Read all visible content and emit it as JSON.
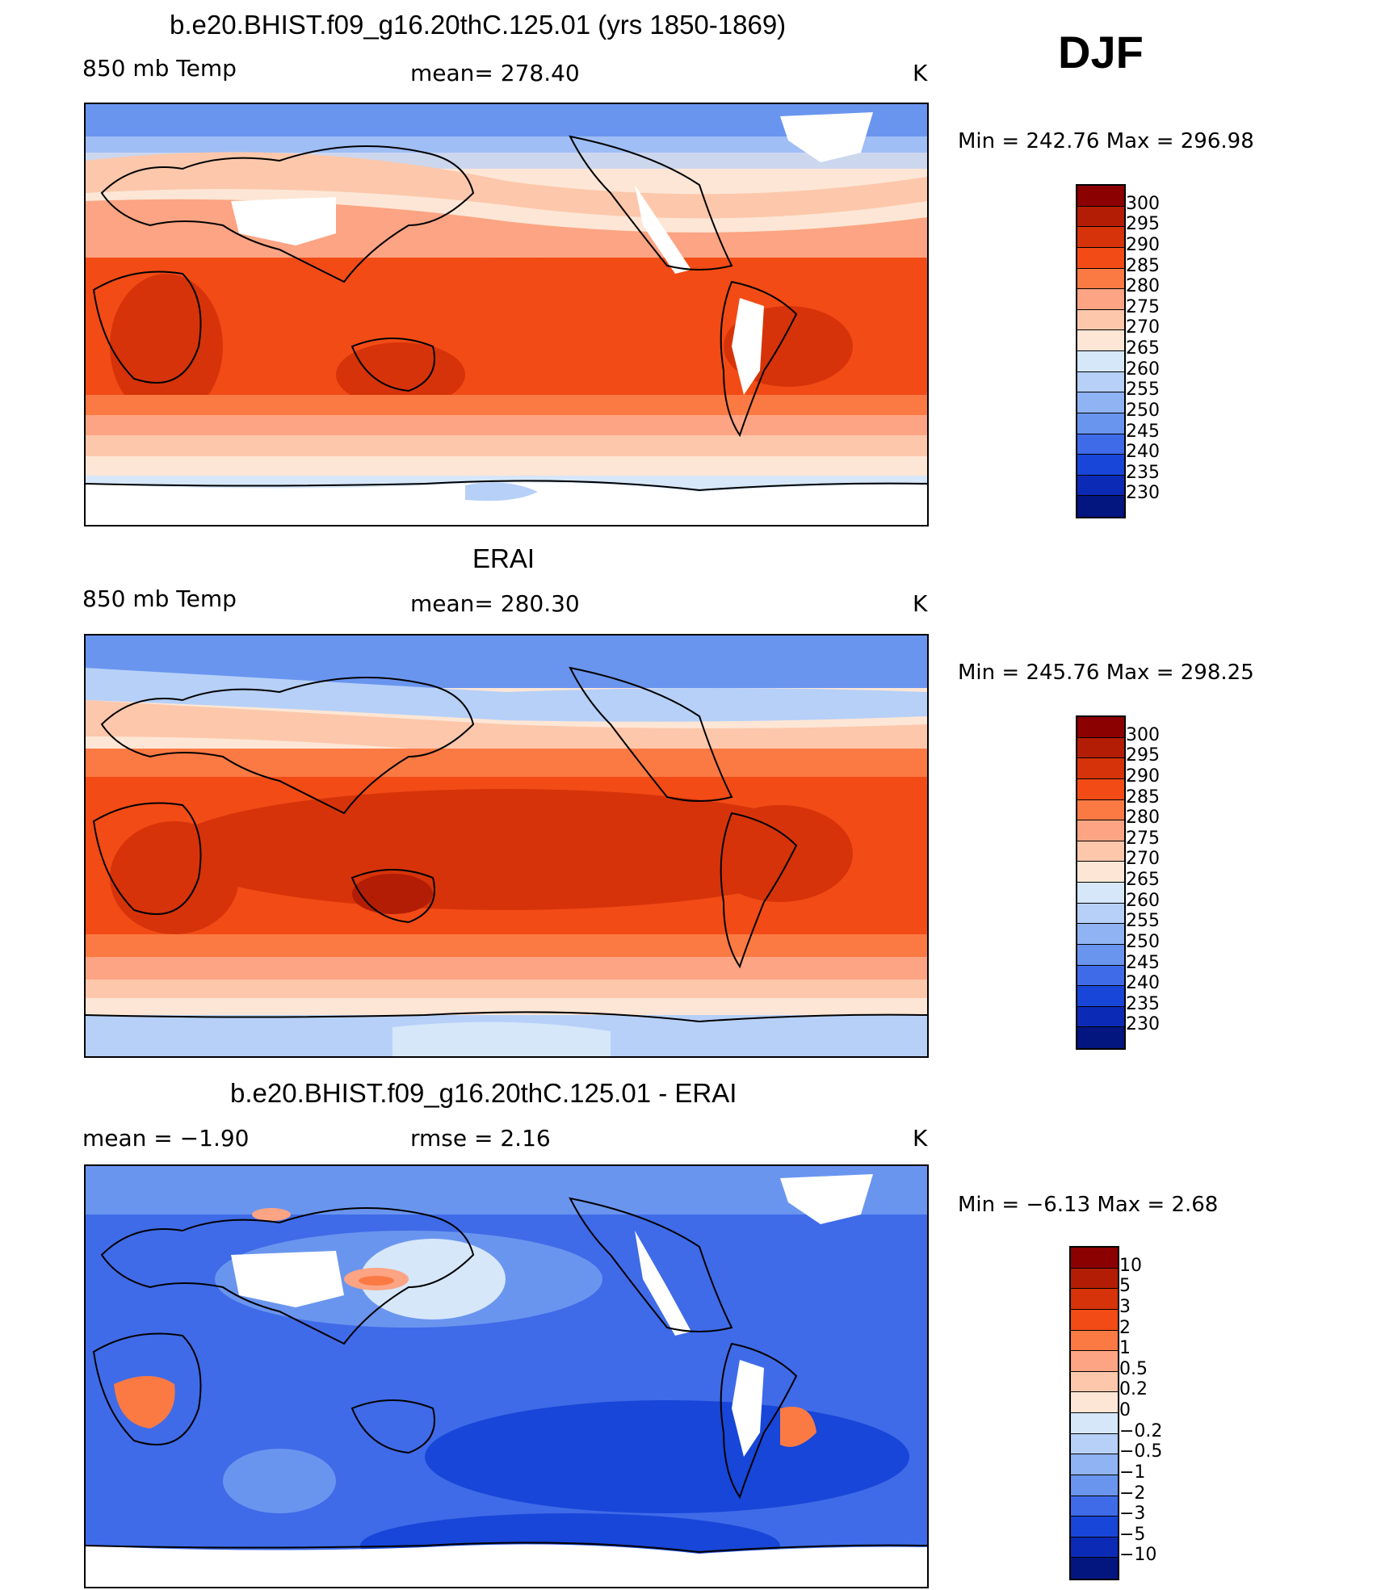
{
  "season": "DJF",
  "panels": [
    {
      "title": "b.e20.BHIST.f09_g16.20thC.125.01 (yrs 1850-1869)",
      "variable": "850 mb Temp",
      "stat": "mean=  278.40",
      "units": "K",
      "minmax": "Min  =  242.76  Max  =  296.98"
    },
    {
      "title": "ERAI",
      "variable": "850 mb Temp",
      "stat": "mean=  280.30",
      "units": "K",
      "minmax": "Min  =  245.76  Max  =  298.25"
    },
    {
      "title": "b.e20.BHIST.f09_g16.20thC.125.01 - ERAI",
      "variable": "mean  =    −1.90",
      "stat": "rmse  =     2.16",
      "units": "K",
      "minmax": "Min  =    −6.13  Max  =      2.68"
    }
  ],
  "colorbars": {
    "abs": {
      "levels": [
        "300",
        "295",
        "290",
        "285",
        "280",
        "275",
        "270",
        "265",
        "260",
        "255",
        "250",
        "245",
        "240",
        "235",
        "230"
      ],
      "colors": [
        "#8b0000",
        "#b31d05",
        "#d6330a",
        "#f24b16",
        "#fb7a43",
        "#fca483",
        "#fcc7ab",
        "#fde6d5",
        "#d6e7fa",
        "#b6d0f8",
        "#8fb3f3",
        "#6a95ef",
        "#3f6be8",
        "#1846d8",
        "#0b2ab5",
        "#03157f"
      ]
    },
    "diff": {
      "levels": [
        "10",
        "5",
        "3",
        "2",
        "1",
        "0.5",
        "0.2",
        "0",
        "−0.2",
        "−0.5",
        "−1",
        "−2",
        "−3",
        "−5",
        "−10"
      ],
      "colors": [
        "#8b0000",
        "#b31d05",
        "#d6330a",
        "#f24b16",
        "#fb7a43",
        "#fca483",
        "#fcc7ab",
        "#fde6d5",
        "#d6e7fa",
        "#b6d0f8",
        "#8fb3f3",
        "#6a95ef",
        "#3f6be8",
        "#1846d8",
        "#0b2ab5",
        "#03157f"
      ]
    }
  }
}
